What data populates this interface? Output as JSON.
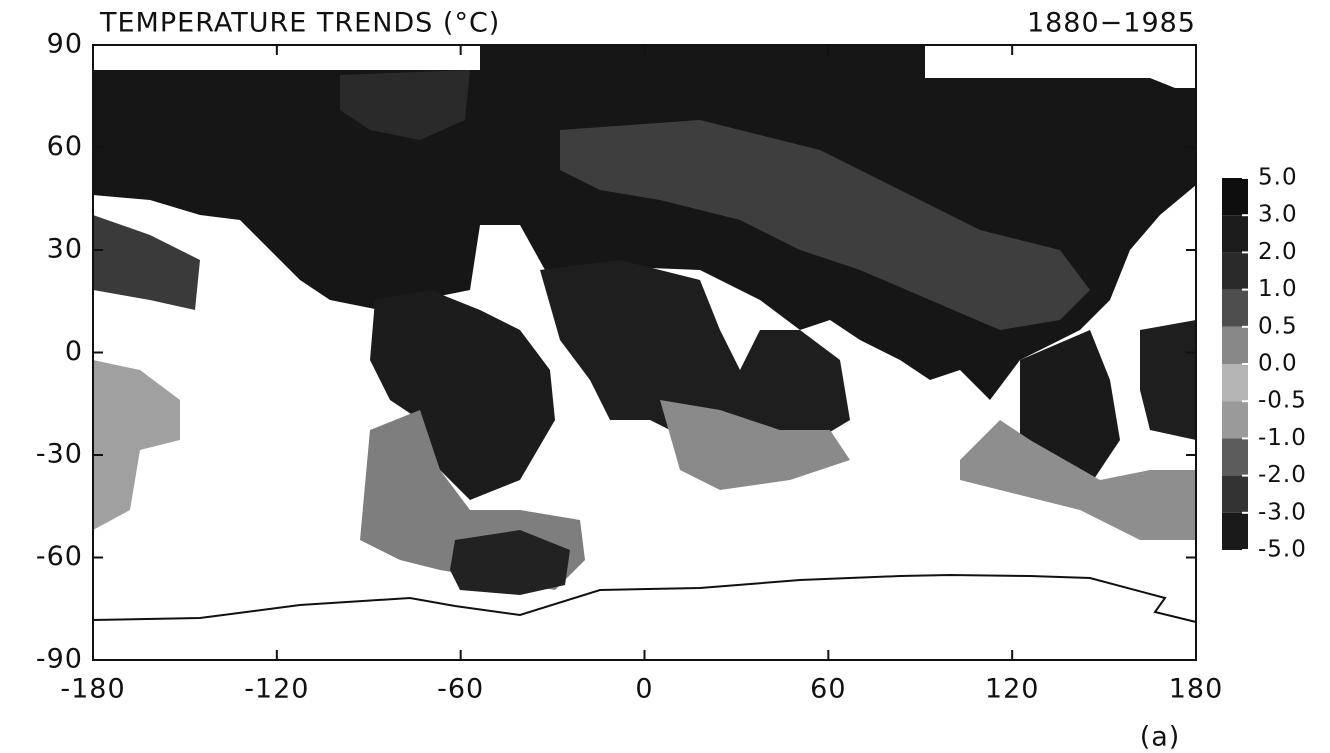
{
  "chart_data": {
    "type": "map",
    "title": "TEMPERATURE TRENDS (°C)",
    "period": "1880−1985",
    "panel_label": "(a)",
    "xlim": [
      -180,
      180
    ],
    "ylim": [
      -90,
      90
    ],
    "xticks": [
      -180,
      -120,
      -60,
      0,
      60,
      120,
      180
    ],
    "yticks": [
      -90,
      -60,
      -30,
      0,
      30,
      60,
      90
    ],
    "colorbar": {
      "ticks": [
        {
          "value": 5,
          "label": "5.0"
        },
        {
          "value": 3,
          "label": "3.0"
        },
        {
          "value": 2,
          "label": "2.0"
        },
        {
          "value": 1,
          "label": "1.0"
        },
        {
          "value": 0.5,
          "label": "0.5"
        },
        {
          "value": 0,
          "label": "0.0"
        },
        {
          "value": -0.5,
          "label": "-0.5"
        },
        {
          "value": -1,
          "label": "-1.0"
        },
        {
          "value": -2,
          "label": "-2.0"
        },
        {
          "value": -3,
          "label": "-3.0"
        },
        {
          "value": -5,
          "label": "-5.0"
        }
      ],
      "colors": [
        "#0e0e0e",
        "#1c1c1c",
        "#2a2a2a",
        "#4e4e4e",
        "#888888",
        "#b4b4b4",
        "#9a9a9a",
        "#5c5c5c",
        "#333333",
        "#1a1a1a"
      ]
    }
  }
}
